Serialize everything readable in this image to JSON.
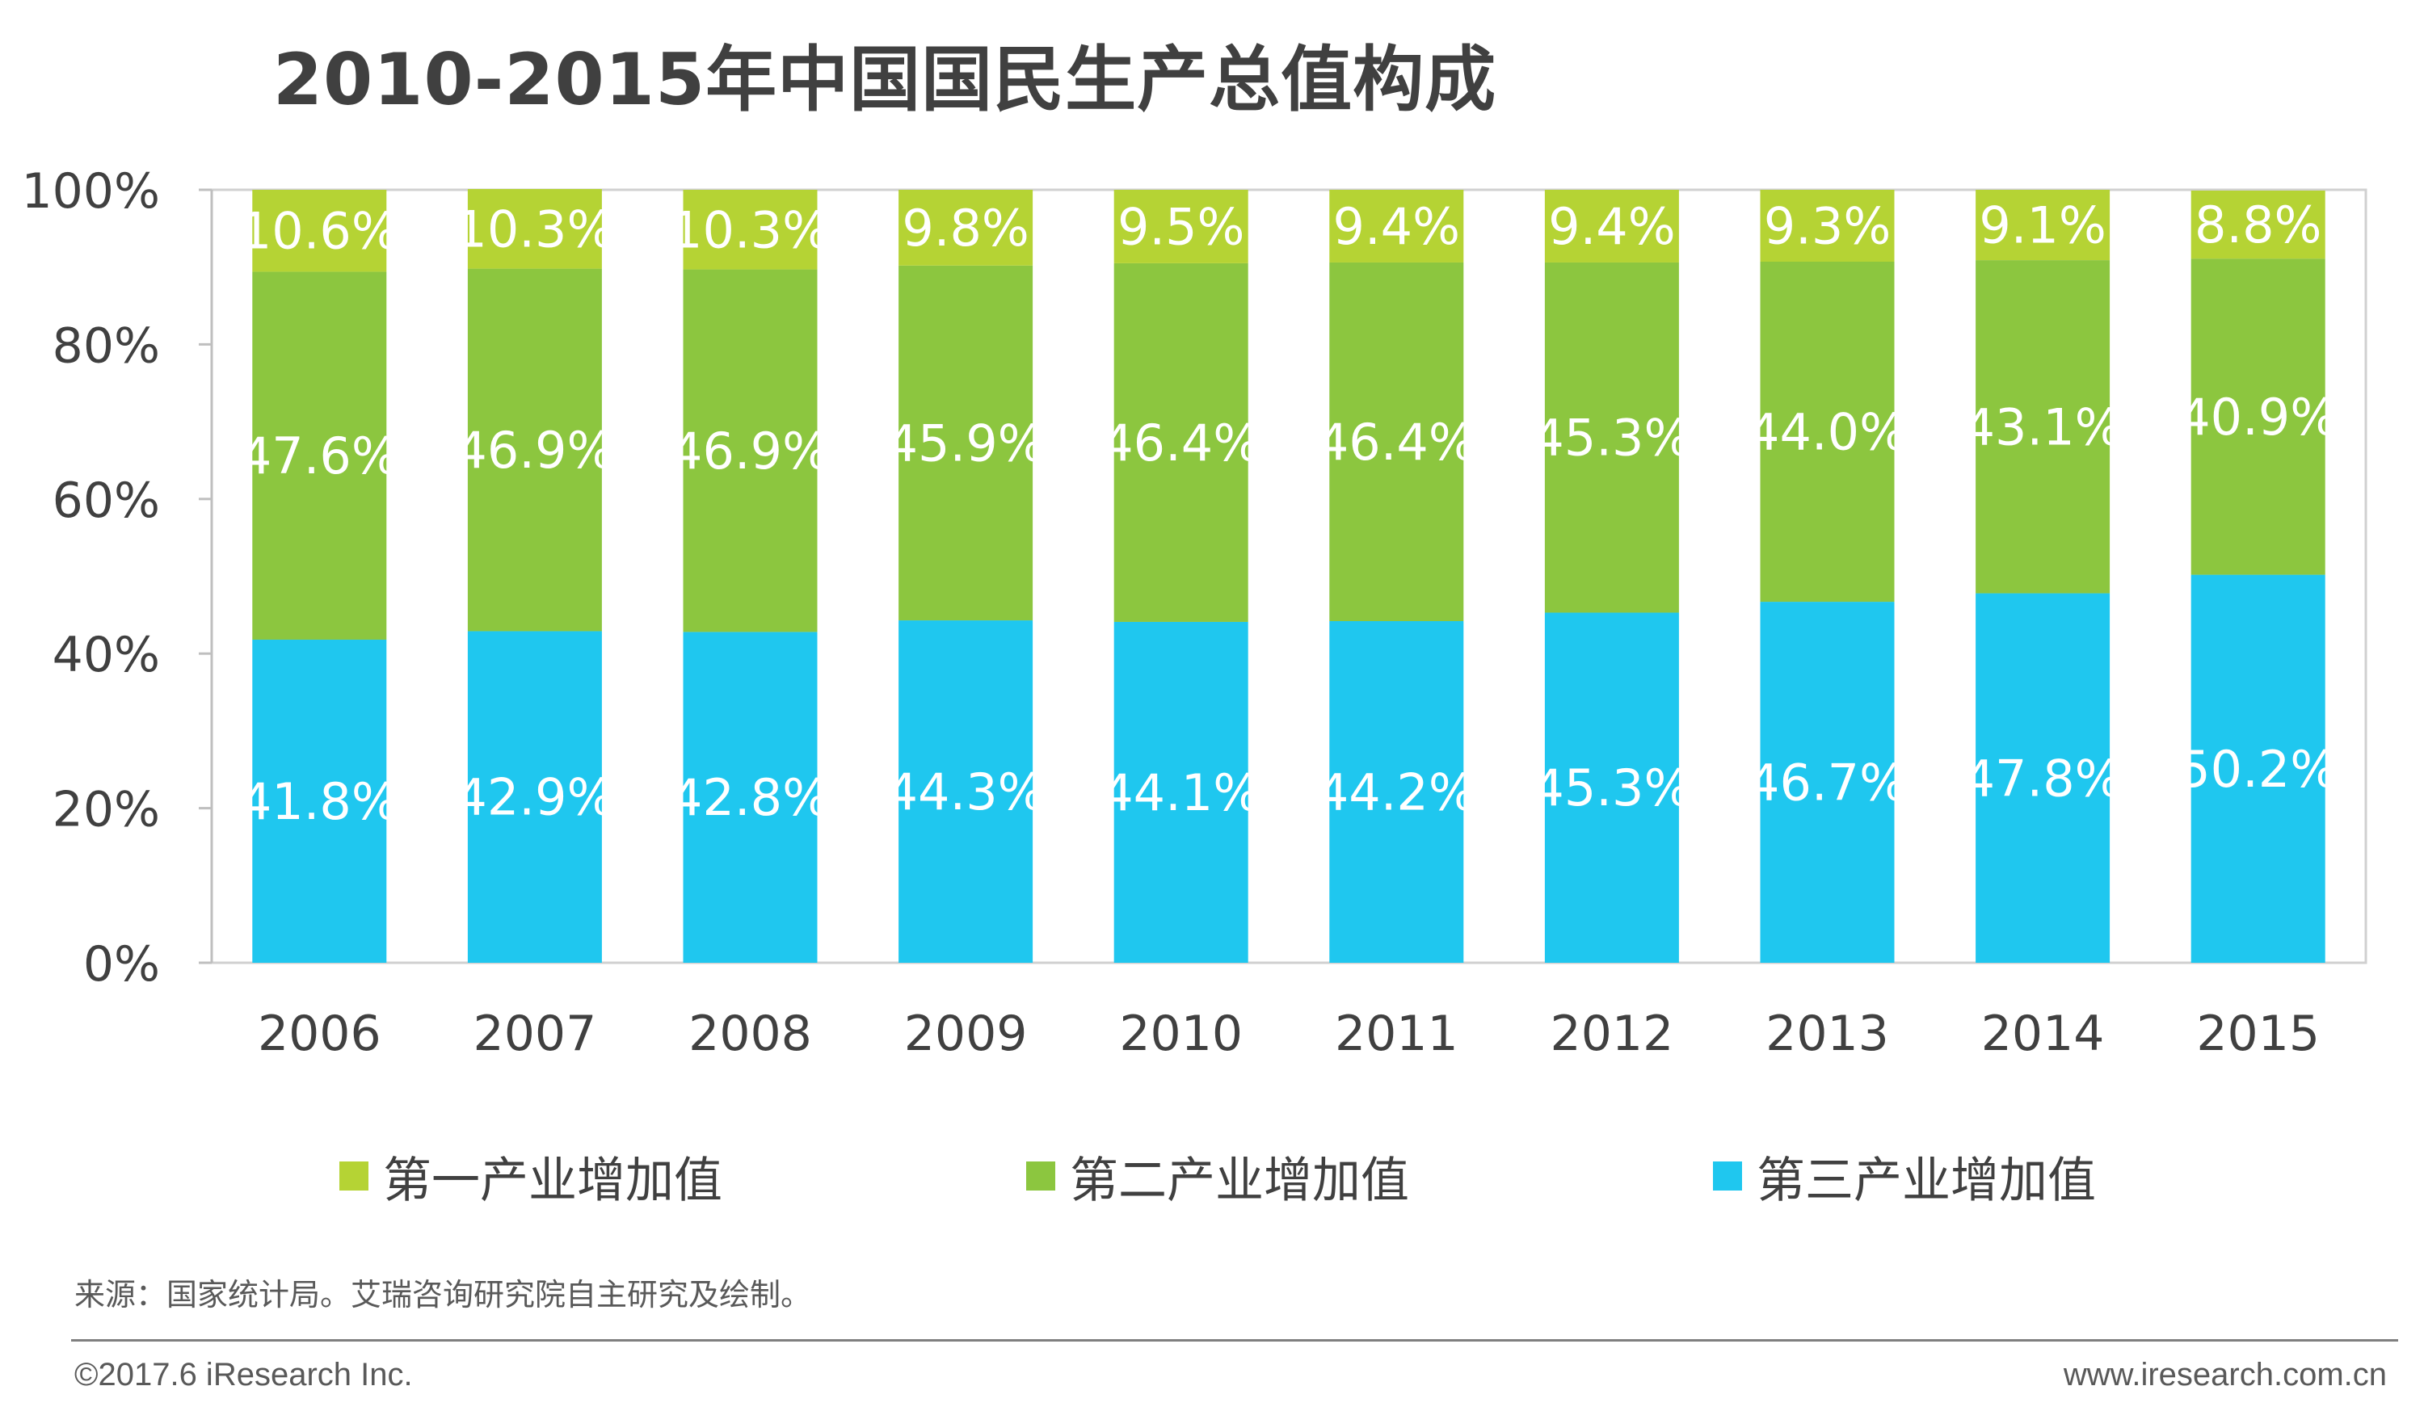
{
  "header": {
    "title": "2010-2015年中国国民生产总值构成"
  },
  "chart_data": {
    "type": "bar",
    "stacked": true,
    "title": "2010-2015年中国国民生产总值构成",
    "categories": [
      "2006",
      "2007",
      "2008",
      "2009",
      "2010",
      "2011",
      "2012",
      "2013",
      "2014",
      "2015"
    ],
    "series": [
      {
        "name": "第三产业增加值",
        "color": "#1fc7ef",
        "values": [
          41.8,
          42.9,
          42.8,
          44.3,
          44.1,
          44.2,
          45.3,
          46.7,
          47.8,
          50.2
        ]
      },
      {
        "name": "第二产业增加值",
        "color": "#8cc63f",
        "values": [
          47.6,
          46.9,
          46.9,
          45.9,
          46.4,
          46.4,
          45.3,
          44.0,
          43.1,
          40.9
        ]
      },
      {
        "name": "第一产业增加值",
        "color": "#b5d334",
        "values": [
          10.6,
          10.3,
          10.3,
          9.8,
          9.5,
          9.4,
          9.4,
          9.3,
          9.1,
          8.8
        ]
      }
    ],
    "yticks": [
      "0%",
      "20%",
      "40%",
      "60%",
      "80%",
      "100%"
    ],
    "ylim": [
      0,
      100
    ],
    "xlabel": "",
    "ylabel": "",
    "data_labels": true,
    "grid": false,
    "legend": {
      "position": "bottom",
      "order": [
        "第一产业增加值",
        "第二产业增加值",
        "第三产业增加值"
      ]
    }
  },
  "legend": {
    "items": [
      {
        "label": "第一产业增加值",
        "color": "#b5d334"
      },
      {
        "label": "第二产业增加值",
        "color": "#8cc63f"
      },
      {
        "label": "第三产业增加值",
        "color": "#1fc7ef"
      }
    ]
  },
  "footer": {
    "source": "来源：国家统计局。艾瑞咨询研究院自主研究及绘制。",
    "copyright": "©2017.6 iResearch Inc.",
    "url": "www.iresearch.com.cn"
  }
}
